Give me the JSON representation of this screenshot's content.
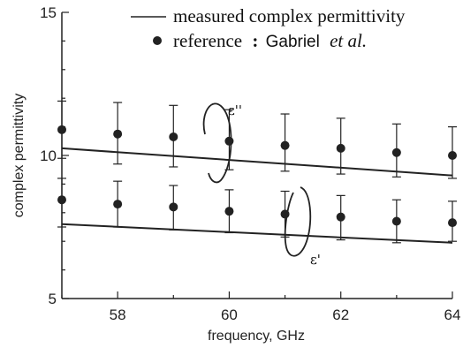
{
  "chart_data": {
    "type": "line",
    "xlabel": "frequency, GHz",
    "ylabel": "complex permittivity",
    "xlim": [
      57,
      64
    ],
    "ylim": [
      5,
      15
    ],
    "x_ticks": [
      58,
      60,
      62,
      64
    ],
    "y_ticks": [
      5,
      10,
      15
    ],
    "x_tick_labels": [
      "58",
      "60",
      "62",
      "64"
    ],
    "y_tick_labels": [
      "5",
      "10",
      "15"
    ],
    "legend": {
      "position": "top-right",
      "line_label": "measured complex permittivity",
      "marker_label": "reference",
      "marker_sep": ":",
      "marker_author": "Gabriel",
      "marker_author_suffix": "et al."
    },
    "series": [
      {
        "name": "measured complex permittivity",
        "kind": "line",
        "component": "ε''",
        "x": [
          57,
          64
        ],
        "y": [
          10.25,
          9.3
        ]
      },
      {
        "name": "measured complex permittivity",
        "kind": "line",
        "component": "ε'",
        "x": [
          57,
          64
        ],
        "y": [
          7.6,
          6.95
        ]
      },
      {
        "name": "reference",
        "kind": "points",
        "component": "ε''",
        "x": [
          57,
          58,
          59,
          60,
          61,
          62,
          63,
          64
        ],
        "y": [
          10.9,
          10.75,
          10.65,
          10.5,
          10.35,
          10.25,
          10.1,
          10.0
        ],
        "err_low": [
          1.0,
          1.05,
          1.05,
          1.0,
          0.9,
          0.9,
          0.85,
          0.8
        ],
        "err_high": [
          1.0,
          1.1,
          1.1,
          1.1,
          1.1,
          1.05,
          1.0,
          1.0
        ]
      },
      {
        "name": "reference",
        "kind": "points",
        "component": "ε'",
        "x": [
          57,
          58,
          59,
          60,
          61,
          62,
          63,
          64
        ],
        "y": [
          8.45,
          8.3,
          8.2,
          8.05,
          7.95,
          7.85,
          7.7,
          7.65
        ],
        "err_low": [
          0.95,
          0.8,
          0.8,
          0.75,
          0.8,
          0.8,
          0.75,
          0.65
        ],
        "err_high": [
          0.75,
          0.8,
          0.75,
          0.75,
          0.8,
          0.75,
          0.75,
          0.75
        ]
      }
    ],
    "annotations": [
      {
        "text": "ε''",
        "points_to": "upper curves"
      },
      {
        "text": "ε'",
        "points_to": "lower curves"
      }
    ],
    "colors": {
      "line": "#222222",
      "marker": "#222222"
    }
  }
}
